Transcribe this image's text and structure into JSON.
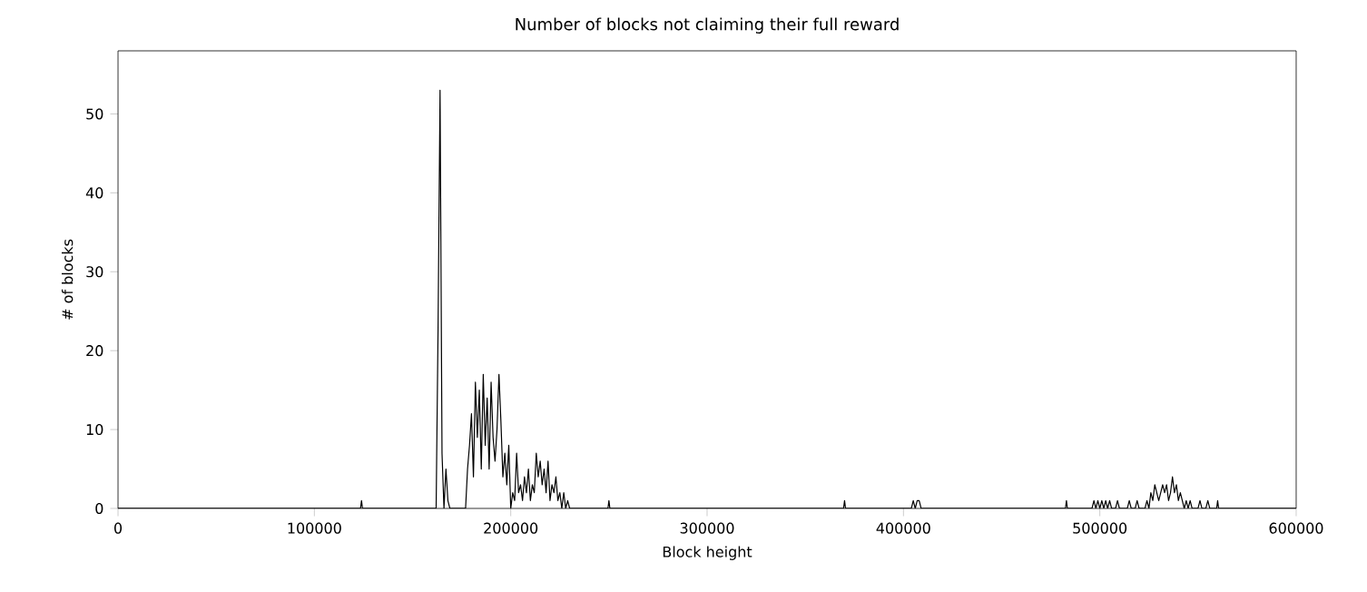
{
  "chart_data": {
    "type": "line",
    "title": "Number of blocks not claiming their full reward",
    "xlabel": "Block height",
    "ylabel": "# of blocks",
    "xlim": [
      0,
      600000
    ],
    "ylim": [
      0,
      58
    ],
    "xticks": [
      0,
      100000,
      200000,
      300000,
      400000,
      500000,
      600000
    ],
    "yticks": [
      0,
      10,
      20,
      30,
      40,
      50
    ],
    "grid": false,
    "marker": "none",
    "line_style": "solid",
    "series": [
      {
        "color": "#000000",
        "x": [
          0,
          123500,
          124000,
          124500,
          162000,
          163000,
          164000,
          165000,
          166000,
          167000,
          168000,
          169000,
          170000,
          177000,
          178000,
          179000,
          180000,
          181000,
          182000,
          183000,
          184000,
          185000,
          186000,
          187000,
          188000,
          189000,
          190000,
          191000,
          192000,
          193000,
          194000,
          195000,
          196000,
          197000,
          198000,
          199000,
          200000,
          201000,
          202000,
          203000,
          204000,
          205000,
          206000,
          207000,
          208000,
          209000,
          210000,
          211000,
          212000,
          213000,
          214000,
          215000,
          216000,
          217000,
          218000,
          219000,
          220000,
          221000,
          222000,
          223000,
          224000,
          225000,
          226000,
          227000,
          228000,
          229000,
          230000,
          231000,
          249500,
          250000,
          250500,
          369500,
          370000,
          370500,
          404000,
          405000,
          406000,
          407000,
          408000,
          409000,
          410000,
          482500,
          483000,
          483500,
          496000,
          497000,
          498000,
          499000,
          500000,
          501000,
          502000,
          503000,
          504000,
          505000,
          506000,
          508000,
          509000,
          510000,
          514000,
          515000,
          516000,
          518000,
          519000,
          520000,
          523000,
          524000,
          525000,
          526000,
          527000,
          528000,
          529000,
          530000,
          531000,
          532000,
          533000,
          534000,
          535000,
          536000,
          537000,
          538000,
          539000,
          540000,
          541000,
          542000,
          543000,
          544000,
          545000,
          546000,
          547000,
          550000,
          551000,
          552000,
          554000,
          555000,
          556000,
          559500,
          560000,
          560500,
          600000
        ],
        "values": [
          0,
          0,
          1,
          0,
          0,
          23,
          53,
          7,
          0,
          5,
          1,
          0,
          0,
          0,
          5,
          8,
          12,
          4,
          16,
          9,
          15,
          5,
          17,
          8,
          14,
          5,
          16,
          9,
          6,
          10,
          17,
          11,
          4,
          7,
          3,
          8,
          0,
          2,
          1,
          7,
          2,
          3,
          1,
          4,
          2,
          5,
          1,
          3,
          2,
          7,
          4,
          6,
          3,
          5,
          2,
          6,
          1,
          3,
          2,
          4,
          1,
          2,
          0,
          2,
          0,
          1,
          0,
          0,
          0,
          1,
          0,
          0,
          1,
          0,
          0,
          1,
          0,
          1,
          1,
          0,
          0,
          0,
          1,
          0,
          0,
          1,
          0,
          1,
          0,
          1,
          0,
          1,
          0,
          1,
          0,
          0,
          1,
          0,
          0,
          1,
          0,
          0,
          1,
          0,
          0,
          1,
          0,
          2,
          1,
          3,
          2,
          1,
          2,
          3,
          2,
          3,
          1,
          2,
          4,
          2,
          3,
          1,
          2,
          1,
          0,
          1,
          0,
          1,
          0,
          0,
          1,
          0,
          0,
          1,
          0,
          0,
          1,
          0,
          0
        ]
      }
    ]
  }
}
